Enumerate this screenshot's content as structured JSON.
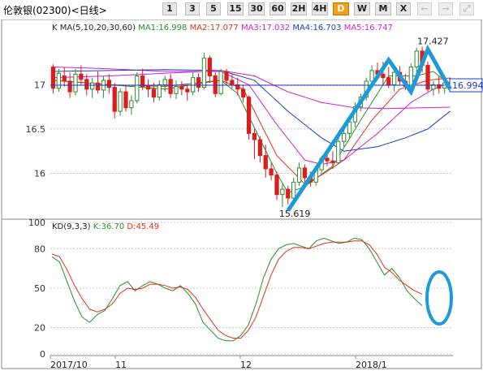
{
  "toolbar": {
    "title": "伦敦银(02300)<日线>",
    "buttons": [
      {
        "label": "1",
        "name": "period-1-button",
        "state": "normal"
      },
      {
        "label": "3",
        "name": "period-3-button",
        "state": "normal"
      },
      {
        "label": "5",
        "name": "period-5-button",
        "state": "normal"
      },
      {
        "label": "15",
        "name": "period-15-button",
        "state": "normal"
      },
      {
        "label": "30",
        "name": "period-30-button",
        "state": "normal"
      },
      {
        "label": "60",
        "name": "period-60-button",
        "state": "normal"
      },
      {
        "label": "2H",
        "name": "period-2h-button",
        "state": "normal"
      },
      {
        "label": "4H",
        "name": "period-4h-button",
        "state": "normal"
      },
      {
        "label": "D",
        "name": "period-day-button",
        "state": "active"
      },
      {
        "label": "W",
        "name": "period-week-button",
        "state": "normal"
      },
      {
        "label": "M",
        "name": "period-month-button",
        "state": "normal"
      },
      {
        "label": "X",
        "name": "close-button",
        "state": "normal"
      },
      {
        "label": "←",
        "name": "arrow-left-button",
        "state": "disabled"
      },
      {
        "label": "→",
        "name": "arrow-right-button",
        "state": "disabled"
      },
      {
        "label": "⤢",
        "name": "expand-button",
        "state": "disabled"
      }
    ]
  },
  "chart_data": [
    {
      "type": "candlestick",
      "panel": "price",
      "title": "K",
      "ylim": [
        15.5,
        17.7
      ],
      "yticks": [
        16,
        16.5,
        17
      ],
      "grid": true,
      "legend": "top-left",
      "ma_legend": [
        {
          "text": "MA(5,10,20,30,60)",
          "color": "#222222"
        },
        {
          "text": "MA1:16.998",
          "color": "#2e8b2e"
        },
        {
          "text": "MA2:17.077",
          "color": "#e0301e"
        },
        {
          "text": "MA3:17.032",
          "color": "#cc22cc"
        },
        {
          "text": "MA4:16.703",
          "color": "#1a3cc8"
        },
        {
          "text": "MA5:16.747",
          "color": "#cc22cc"
        }
      ],
      "current_price": 16.994,
      "current_price_label": "16.994",
      "high_label": "17.427",
      "low_label": "15.619",
      "candles": [
        [
          17.2,
          17.23,
          16.9,
          16.96
        ],
        [
          16.96,
          17.18,
          16.92,
          17.13
        ],
        [
          17.1,
          17.2,
          16.98,
          17.04
        ],
        [
          17.04,
          17.14,
          16.85,
          16.92
        ],
        [
          16.92,
          17.18,
          16.88,
          17.12
        ],
        [
          17.12,
          17.22,
          17.0,
          17.06
        ],
        [
          17.06,
          17.12,
          16.88,
          16.95
        ],
        [
          16.95,
          17.08,
          16.85,
          17.02
        ],
        [
          17.02,
          17.15,
          16.9,
          16.94
        ],
        [
          16.94,
          17.1,
          16.85,
          17.05
        ],
        [
          17.05,
          17.12,
          16.9,
          16.97
        ],
        [
          16.97,
          17.02,
          16.62,
          16.7
        ],
        [
          16.7,
          16.96,
          16.65,
          16.92
        ],
        [
          16.92,
          16.98,
          16.7,
          16.74
        ],
        [
          16.74,
          16.88,
          16.66,
          16.82
        ],
        [
          16.82,
          17.14,
          16.79,
          17.1
        ],
        [
          17.1,
          17.18,
          16.94,
          16.98
        ],
        [
          16.98,
          17.06,
          16.86,
          16.95
        ],
        [
          16.95,
          17.02,
          16.8,
          16.86
        ],
        [
          16.86,
          17.05,
          16.82,
          17.0
        ],
        [
          17.0,
          17.1,
          16.92,
          17.06
        ],
        [
          17.06,
          17.12,
          16.85,
          16.9
        ],
        [
          16.9,
          17.05,
          16.84,
          16.98
        ],
        [
          16.98,
          17.04,
          16.88,
          16.95
        ],
        [
          16.95,
          17.0,
          16.82,
          16.92
        ],
        [
          16.92,
          17.15,
          16.88,
          17.08
        ],
        [
          17.08,
          17.13,
          16.92,
          16.97
        ],
        [
          16.97,
          17.36,
          16.95,
          17.3
        ],
        [
          17.3,
          17.33,
          17.02,
          17.1
        ],
        [
          17.1,
          17.14,
          16.86,
          16.9
        ],
        [
          16.9,
          17.18,
          16.88,
          17.15
        ],
        [
          17.15,
          17.18,
          17.0,
          17.05
        ],
        [
          17.05,
          17.12,
          16.96,
          17.0
        ],
        [
          17.0,
          17.08,
          16.88,
          16.95
        ],
        [
          16.95,
          16.99,
          16.8,
          16.86
        ],
        [
          16.86,
          16.88,
          16.38,
          16.45
        ],
        [
          16.45,
          16.5,
          16.16,
          16.38
        ],
        [
          16.38,
          16.42,
          16.12,
          16.2
        ],
        [
          16.2,
          16.32,
          15.95,
          16.05
        ],
        [
          16.05,
          16.12,
          15.92,
          15.98
        ],
        [
          15.98,
          16.02,
          15.7,
          15.76
        ],
        [
          15.76,
          15.88,
          15.62,
          15.82
        ],
        [
          15.82,
          15.86,
          15.65,
          15.72
        ],
        [
          15.72,
          15.95,
          15.68,
          15.9
        ],
        [
          15.9,
          16.12,
          15.86,
          16.06
        ],
        [
          16.06,
          16.1,
          15.9,
          15.95
        ],
        [
          15.95,
          16.02,
          15.85,
          15.9
        ],
        [
          15.9,
          16.08,
          15.86,
          16.04
        ],
        [
          16.04,
          16.2,
          16.0,
          16.17
        ],
        [
          16.17,
          16.25,
          16.08,
          16.14
        ],
        [
          16.14,
          16.25,
          16.05,
          16.12
        ],
        [
          16.12,
          16.4,
          16.1,
          16.36
        ],
        [
          16.36,
          16.52,
          16.3,
          16.45
        ],
        [
          16.45,
          16.62,
          16.4,
          16.58
        ],
        [
          16.58,
          16.8,
          16.52,
          16.75
        ],
        [
          16.75,
          16.9,
          16.7,
          16.86
        ],
        [
          16.86,
          17.08,
          16.82,
          17.04
        ],
        [
          17.04,
          17.22,
          16.98,
          17.16
        ],
        [
          17.16,
          17.25,
          17.06,
          17.12
        ],
        [
          17.12,
          17.26,
          17.0,
          17.08
        ],
        [
          17.08,
          17.2,
          16.96,
          17.0
        ],
        [
          17.0,
          17.18,
          16.92,
          17.14
        ],
        [
          17.14,
          17.21,
          17.0,
          17.04
        ],
        [
          17.04,
          17.12,
          16.94,
          16.98
        ],
        [
          16.98,
          17.24,
          16.96,
          17.2
        ],
        [
          17.2,
          17.42,
          17.12,
          17.38
        ],
        [
          17.38,
          17.43,
          17.14,
          17.22
        ],
        [
          17.22,
          17.26,
          16.92,
          16.95
        ],
        [
          16.95,
          17.04,
          16.88,
          17.0
        ],
        [
          17.0,
          17.1,
          16.9,
          16.96
        ],
        [
          16.96,
          17.04,
          16.9,
          17.02
        ],
        [
          17.02,
          17.08,
          16.96,
          16.99
        ]
      ],
      "ma_lines": [
        {
          "name": "MA1",
          "color": "#2e8b2e",
          "points": [
            [
              0,
              17.05
            ],
            [
              10,
              17.0
            ],
            [
              20,
              16.95
            ],
            [
              30,
              17.05
            ],
            [
              33,
              16.9
            ],
            [
              40,
              16.0
            ],
            [
              42,
              15.78
            ],
            [
              45,
              15.85
            ],
            [
              50,
              16.08
            ],
            [
              55,
              16.6
            ],
            [
              60,
              17.1
            ],
            [
              65,
              17.1
            ],
            [
              68,
              17.15
            ],
            [
              71,
              16.998
            ]
          ]
        },
        {
          "name": "MA2",
          "color": "#e0301e",
          "points": [
            [
              0,
              17.05
            ],
            [
              10,
              17.0
            ],
            [
              20,
              16.98
            ],
            [
              30,
              17.05
            ],
            [
              34,
              16.95
            ],
            [
              40,
              16.2
            ],
            [
              45,
              15.88
            ],
            [
              48,
              15.98
            ],
            [
              52,
              16.15
            ],
            [
              57,
              16.6
            ],
            [
              62,
              16.95
            ],
            [
              67,
              17.05
            ],
            [
              71,
              17.077
            ]
          ]
        },
        {
          "name": "MA3",
          "color": "#cc22cc",
          "points": [
            [
              0,
              17.2
            ],
            [
              10,
              17.18
            ],
            [
              20,
              17.15
            ],
            [
              30,
              17.15
            ],
            [
              35,
              17.0
            ],
            [
              40,
              16.55
            ],
            [
              45,
              16.15
            ],
            [
              48,
              16.1
            ],
            [
              52,
              16.15
            ],
            [
              58,
              16.45
            ],
            [
              64,
              16.8
            ],
            [
              68,
              16.95
            ],
            [
              71,
              17.032
            ]
          ]
        },
        {
          "name": "MA4",
          "color": "#1a3cc8",
          "points": [
            [
              0,
              17.15
            ],
            [
              10,
              17.16
            ],
            [
              20,
              17.17
            ],
            [
              30,
              17.16
            ],
            [
              36,
              17.05
            ],
            [
              42,
              16.7
            ],
            [
              48,
              16.4
            ],
            [
              52,
              16.25
            ],
            [
              58,
              16.3
            ],
            [
              63,
              16.4
            ],
            [
              67,
              16.5
            ],
            [
              71,
              16.703
            ]
          ]
        },
        {
          "name": "MA5",
          "color": "#cc22cc",
          "points": [
            [
              0,
              17.08
            ],
            [
              10,
              17.1
            ],
            [
              20,
              17.13
            ],
            [
              30,
              17.16
            ],
            [
              36,
              17.1
            ],
            [
              42,
              16.92
            ],
            [
              48,
              16.8
            ],
            [
              54,
              16.74
            ],
            [
              60,
              16.73
            ],
            [
              66,
              16.74
            ],
            [
              71,
              16.747
            ]
          ]
        }
      ],
      "annotation_path": [
        [
          42,
          15.58
        ],
        [
          60,
          17.28
        ],
        [
          64,
          16.92
        ],
        [
          67,
          17.4
        ],
        [
          71,
          16.95
        ]
      ]
    },
    {
      "type": "line",
      "panel": "indicator",
      "title": "KD(9,3,3)",
      "legend": "top-left",
      "ylim": [
        0,
        100
      ],
      "yticks": [
        0,
        20,
        50,
        80,
        100
      ],
      "grid": true,
      "series": [
        {
          "name": "K:36.70",
          "color": "#2e8b2e",
          "values": [
            74,
            70,
            55,
            40,
            28,
            24,
            30,
            33,
            42,
            52,
            55,
            48,
            52,
            55,
            53,
            50,
            48,
            52,
            46,
            38,
            24,
            18,
            12,
            10,
            10,
            14,
            22,
            38,
            58,
            72,
            80,
            83,
            84,
            82,
            80,
            86,
            88,
            86,
            84,
            85,
            88,
            87,
            80,
            70,
            60,
            65,
            58,
            48,
            42,
            36.7
          ]
        },
        {
          "name": "D:45.49",
          "color": "#e0301e",
          "values": [
            76,
            74,
            64,
            52,
            42,
            34,
            32,
            34,
            38,
            46,
            50,
            49,
            50,
            53,
            53,
            52,
            50,
            51,
            49,
            43,
            34,
            26,
            18,
            14,
            12,
            12,
            18,
            28,
            44,
            60,
            72,
            78,
            81,
            81,
            80,
            82,
            84,
            85,
            85,
            85,
            86,
            86,
            83,
            76,
            66,
            62,
            56,
            52,
            48,
            45.49
          ]
        }
      ],
      "x_axis_labels": [
        "2017/10",
        "11",
        "12",
        "2018/1"
      ]
    }
  ]
}
